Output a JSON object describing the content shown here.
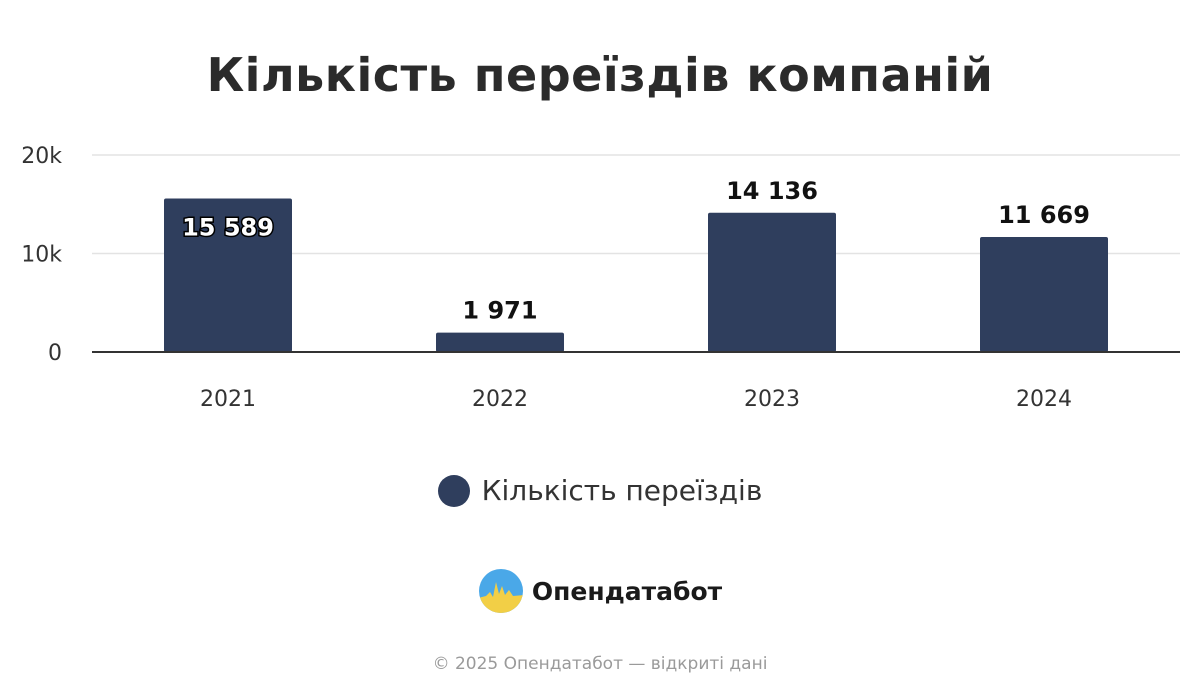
{
  "chart_data": {
    "type": "bar",
    "title": "Кількість переїздів компаній",
    "categories": [
      "2021",
      "2022",
      "2023",
      "2024"
    ],
    "series": [
      {
        "name": "Кількість переїздів",
        "values": [
          15589,
          1971,
          14136,
          11669
        ]
      }
    ],
    "data_labels": [
      "15 589",
      "1 971",
      "14 136",
      "11 669"
    ],
    "yticks": [
      0,
      10000,
      20000
    ],
    "ytick_labels": [
      "0",
      "10k",
      "20k"
    ],
    "ylim": [
      0,
      20000
    ],
    "grid": true,
    "legend_position": "bottom",
    "colors": {
      "bar": "#2f3e5d",
      "grid": "#e3e3e3",
      "axis": "#333333"
    }
  },
  "brand": {
    "name": "Опендатабот",
    "logo_icon": "opendatabot-logo-icon"
  },
  "footer": {
    "text": "© 2025 Опендатабот — відкриті дані"
  }
}
